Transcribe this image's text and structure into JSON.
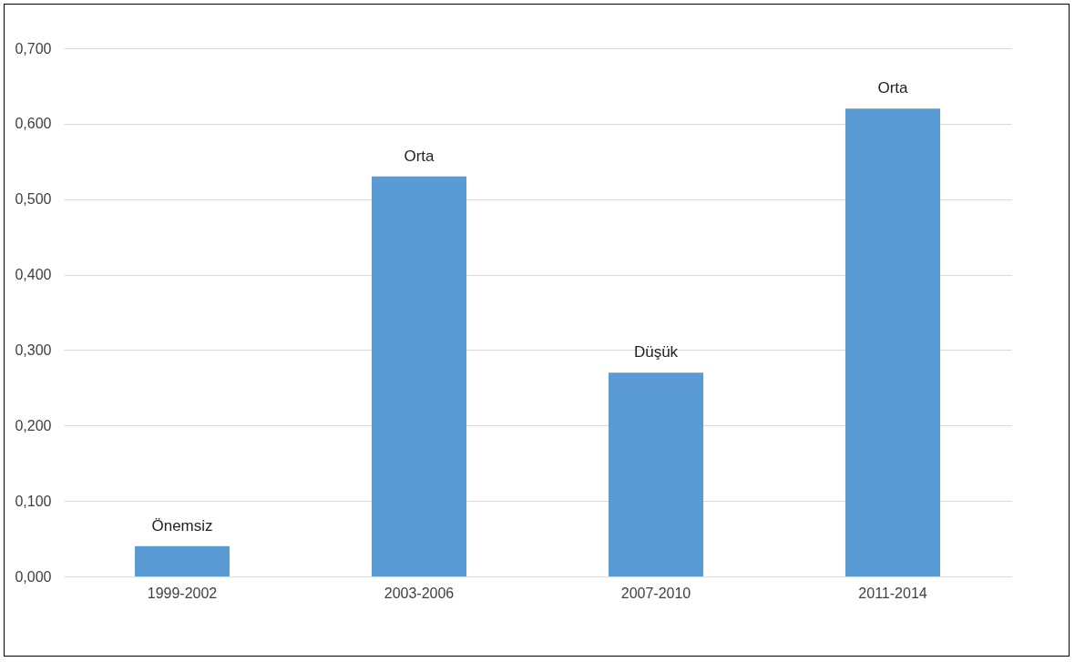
{
  "chart_data": {
    "type": "bar",
    "categories": [
      "1999-2002",
      "2003-2006",
      "2007-2010",
      "2011-2014"
    ],
    "values": [
      0.04,
      0.53,
      0.27,
      0.62
    ],
    "value_labels": [
      "Önemsiz",
      "Orta",
      "Düşük",
      "Orta"
    ],
    "color": "#5b9bd5",
    "ylim": [
      0,
      0.7
    ],
    "yticks": [
      {
        "value": 0,
        "label": "0,000"
      },
      {
        "value": 0.1,
        "label": "0,100"
      },
      {
        "value": 0.2,
        "label": "0,200"
      },
      {
        "value": 0.3,
        "label": "0,300"
      },
      {
        "value": 0.4,
        "label": "0,400"
      },
      {
        "value": 0.5,
        "label": "0,500"
      },
      {
        "value": 0.6,
        "label": "0,600"
      },
      {
        "value": 0.7,
        "label": "0,700"
      }
    ],
    "grid": "y"
  }
}
